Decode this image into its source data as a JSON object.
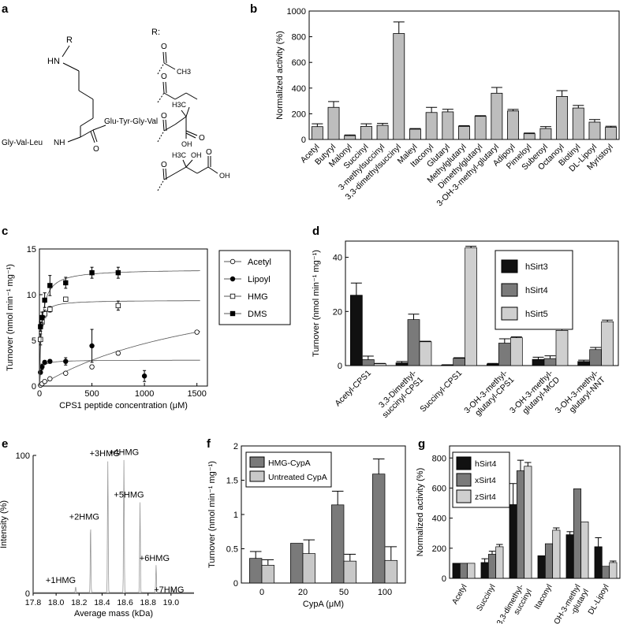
{
  "panels": [
    "a",
    "b",
    "c",
    "d",
    "e",
    "f",
    "g"
  ],
  "structure_a": {
    "r_label": "R:",
    "r_atom": "R",
    "hn": "HN",
    "right_peptide": "Glu-Tyr-Gly-Val",
    "left_peptide": "Gly-Val-Leu",
    "nh": "NH",
    "o": "O",
    "ch3": "CH3",
    "h3c": "H3C",
    "oh": "OH"
  },
  "chart_data": [
    {
      "panel": "b",
      "type": "bar",
      "title": "",
      "xlabel": "",
      "ylabel": "Normalized activity (%)",
      "ylim": [
        0,
        1000
      ],
      "yticks": [
        0,
        200,
        400,
        600,
        800,
        1000
      ],
      "categories": [
        "Acetyl",
        "Butyryl",
        "Malonyl",
        "Succinyl",
        "3-methylsuccinyl",
        "3,3-dimethylsuccinyl",
        "Maleyl",
        "Itaconyl",
        "Glutaryl",
        "Methylglutaryl",
        "Dimethylglutaryl",
        "3-OH-3-methyl-glutaryl",
        "Adipoyl",
        "Pimeloyl",
        "Suberoyl",
        "Octanoyl",
        "Biotinyl",
        "DL-Lipoyl",
        "Myristoyl"
      ],
      "values": [
        100,
        250,
        30,
        102,
        110,
        825,
        80,
        210,
        215,
        102,
        180,
        360,
        222,
        45,
        85,
        335,
        245,
        135,
        95
      ],
      "errors": [
        22,
        45,
        5,
        20,
        15,
        90,
        5,
        40,
        20,
        5,
        5,
        45,
        12,
        5,
        15,
        45,
        20,
        20,
        8
      ],
      "color": "#bdbdbd"
    },
    {
      "panel": "c",
      "type": "scatter",
      "xlabel": "CPS1 peptide concentration (μM)",
      "ylabel": "Turnover (nmol min⁻¹ mg⁻¹)",
      "xlim": [
        0,
        1600
      ],
      "ylim": [
        0,
        15
      ],
      "xticks": [
        0,
        500,
        1000,
        1500
      ],
      "yticks": [
        0,
        5,
        10,
        15
      ],
      "legend_position": "right",
      "series": [
        {
          "name": "Acetyl",
          "marker": "open-circle",
          "x": [
            10,
            25,
            50,
            100,
            250,
            500,
            750,
            1500
          ],
          "y": [
            0.1,
            0.25,
            0.5,
            0.8,
            1.4,
            2.1,
            3.6,
            5.9
          ],
          "errors": [
            0.05,
            0.05,
            0.1,
            0.1,
            0.15,
            0.2,
            0.2,
            0.15
          ],
          "fit": {
            "vmax": 13.0,
            "km": 1800
          }
        },
        {
          "name": "Lipoyl",
          "marker": "filled-circle",
          "x": [
            10,
            25,
            50,
            100,
            250,
            500,
            1000
          ],
          "y": [
            1.5,
            2.1,
            2.6,
            2.7,
            2.7,
            4.4,
            1.1
          ],
          "errors": [
            0.2,
            0.3,
            0.2,
            0.2,
            0.4,
            1.8,
            0.6
          ],
          "fit": {
            "vmax": 2.85,
            "km": 12
          }
        },
        {
          "name": "HMG",
          "marker": "open-square",
          "x": [
            10,
            25,
            50,
            100,
            250,
            750
          ],
          "y": [
            5.1,
            7.0,
            7.9,
            8.4,
            9.5,
            8.8
          ],
          "errors": [
            0.6,
            0.4,
            0.4,
            0.3,
            0.2,
            0.5
          ],
          "fit": {
            "vmax": 9.4,
            "km": 10
          }
        },
        {
          "name": "DMS",
          "marker": "filled-square",
          "x": [
            10,
            25,
            50,
            100,
            250,
            500,
            750
          ],
          "y": [
            6.5,
            7.5,
            9.4,
            11.0,
            11.3,
            12.4,
            12.4
          ],
          "errors": [
            0.5,
            0.6,
            0.8,
            1.1,
            0.6,
            0.6,
            0.6
          ],
          "fit": {
            "vmax": 12.8,
            "km": 22
          }
        }
      ]
    },
    {
      "panel": "d",
      "type": "bar",
      "xlabel": "",
      "ylabel": "Turnover (nmol min⁻¹ mg⁻¹)",
      "ylim": [
        0,
        46
      ],
      "yticks": [
        0,
        20,
        40
      ],
      "categories": [
        "Acetyl-CPS1",
        "3,3-Dimethyl-|succinyl-CPS1",
        "Succinyl-CPS1",
        "3-OH-3-methyl-|glutaryl-CPS1",
        "3-OH-3-methyl-|glutaryl-MCD",
        "3-OH-3-methyl-|glutaryl-NNT"
      ],
      "legend_position": "top-right",
      "series": [
        {
          "name": "hSirt3",
          "color": "#111111",
          "values": [
            26,
            1.0,
            0.2,
            0.6,
            2.3,
            1.5
          ],
          "errors": [
            4.5,
            0.5,
            0.1,
            0.2,
            0.8,
            0.5
          ]
        },
        {
          "name": "hSirt4",
          "color": "#7a7a7a",
          "values": [
            2.2,
            17,
            2.7,
            8.3,
            2.6,
            5.9
          ],
          "errors": [
            1.3,
            2.0,
            0.2,
            1.6,
            1.0,
            0.8
          ]
        },
        {
          "name": "hSirt5",
          "color": "#cfcfcf",
          "values": [
            0.7,
            8.8,
            43.5,
            10.3,
            13.0,
            16.2
          ],
          "errors": [
            0.1,
            0.2,
            0.6,
            0.3,
            0.5,
            0.6
          ]
        }
      ]
    },
    {
      "panel": "e",
      "type": "line",
      "xlabel": "Average mass (kDa)",
      "ylabel": "Intensity (%)",
      "xlim": [
        17.8,
        19.2
      ],
      "ylim": [
        0,
        100
      ],
      "xticks": [
        17.8,
        18.0,
        18.2,
        18.4,
        18.6,
        18.8,
        19.0
      ],
      "yticks": [
        0,
        100
      ],
      "peaks": [
        {
          "label": "+1HMG",
          "x": 18.17,
          "y": 4
        },
        {
          "label": "+2HMG",
          "x": 18.3,
          "y": 50
        },
        {
          "label": "+3HMG",
          "x": 18.45,
          "y": 96
        },
        {
          "label": "+4HMG",
          "x": 18.59,
          "y": 97
        },
        {
          "label": "+5HMG",
          "x": 18.73,
          "y": 66
        },
        {
          "label": "+6HMG",
          "x": 18.87,
          "y": 20
        },
        {
          "label": "+7HMG",
          "x": 19.01,
          "y": 3
        }
      ]
    },
    {
      "panel": "f",
      "type": "bar",
      "xlabel": "CypA (μM)",
      "ylabel": "Turnover (nmol min⁻¹ mg⁻¹)",
      "ylim": [
        0,
        2
      ],
      "yticks": [
        0,
        0.5,
        1,
        1.5,
        2
      ],
      "categories": [
        "0",
        "20",
        "50",
        "100"
      ],
      "legend_position": "top-left",
      "series": [
        {
          "name": "HMG-CypA",
          "color": "#7a7a7a",
          "values": [
            0.36,
            0.58,
            1.14,
            1.59
          ],
          "errors": [
            0.1,
            0.0,
            0.2,
            0.22
          ]
        },
        {
          "name": "Untreated CypA",
          "color": "#c8c8c8",
          "values": [
            0.26,
            0.43,
            0.32,
            0.33
          ],
          "errors": [
            0.08,
            0.2,
            0.1,
            0.2
          ]
        }
      ]
    },
    {
      "panel": "g",
      "type": "bar",
      "xlabel": "",
      "ylabel": "Normalized activity (%)",
      "ylim": [
        0,
        880
      ],
      "yticks": [
        0,
        200,
        400,
        600,
        800
      ],
      "categories": [
        "Acetyl",
        "Succinyl",
        "3,3-dimethyl-|succinyl",
        "Itaconyl",
        "3-OH-3-methyl|-glutaryl",
        "DL-Lipoyl"
      ],
      "legend_position": "top-left",
      "series": [
        {
          "name": "hSirt4",
          "color": "#111111",
          "values": [
            100,
            105,
            490,
            150,
            290,
            210
          ],
          "errors": [
            0,
            25,
            140,
            0,
            20,
            60
          ]
        },
        {
          "name": "xSirt4",
          "color": "#7a7a7a",
          "values": [
            100,
            160,
            715,
            230,
            595,
            80
          ],
          "errors": [
            0,
            20,
            70,
            0,
            0,
            0
          ]
        },
        {
          "name": "zSirt4",
          "color": "#cfcfcf",
          "values": [
            100,
            210,
            745,
            320,
            375,
            105
          ],
          "errors": [
            0,
            15,
            25,
            15,
            0,
            10
          ]
        }
      ]
    }
  ]
}
